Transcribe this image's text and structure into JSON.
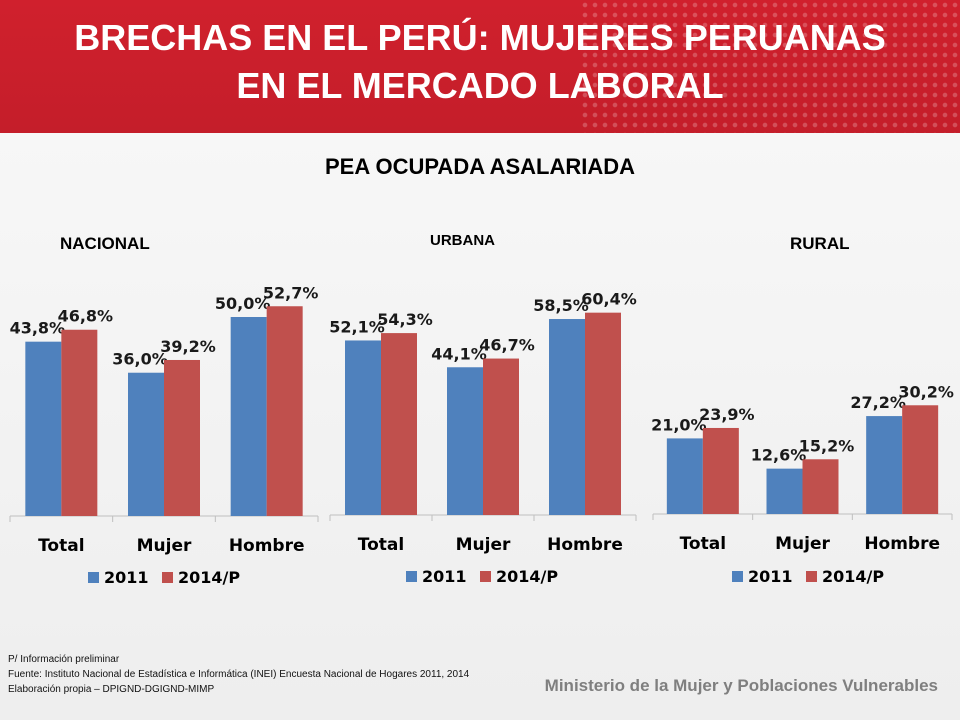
{
  "header": {
    "title_line1": "BRECHAS EN EL PERÚ: MUJERES PERUANAS",
    "title_line2": "EN EL MERCADO LABORAL"
  },
  "subtitle": "PEA OCUPADA ASALARIADA",
  "panels": [
    {
      "label": "NACIONAL"
    },
    {
      "label": "URBANA"
    },
    {
      "label": "RURAL"
    }
  ],
  "chart_data": [
    {
      "type": "bar",
      "title": "NACIONAL",
      "categories": [
        "Total",
        "Mujer",
        "Hombre"
      ],
      "series": [
        {
          "name": "2011",
          "values": [
            43.8,
            36.0,
            50.0
          ],
          "labels": [
            "43,8%",
            "36,0%",
            "50,0%"
          ],
          "color": "#4f81bd"
        },
        {
          "name": "2014/P",
          "values": [
            46.8,
            39.2,
            52.7
          ],
          "labels": [
            "46,8%",
            "39,2%",
            "52,7%"
          ],
          "color": "#c0504d"
        }
      ],
      "ylim": [
        0,
        60
      ],
      "grid": false,
      "legend": "bottom"
    },
    {
      "type": "bar",
      "title": "URBANA",
      "categories": [
        "Total",
        "Mujer",
        "Hombre"
      ],
      "series": [
        {
          "name": "2011",
          "values": [
            52.1,
            44.1,
            58.5
          ],
          "labels": [
            "52,1%",
            "44,1%",
            "58,5%"
          ],
          "color": "#4f81bd"
        },
        {
          "name": "2014/P",
          "values": [
            54.3,
            46.7,
            60.4
          ],
          "labels": [
            "54,3%",
            "46,7%",
            "60,4%"
          ],
          "color": "#c0504d"
        }
      ],
      "ylim": [
        0,
        70
      ],
      "grid": false,
      "legend": "bottom"
    },
    {
      "type": "bar",
      "title": "RURAL",
      "categories": [
        "Total",
        "Mujer",
        "Hombre"
      ],
      "series": [
        {
          "name": "2011",
          "values": [
            21.0,
            12.6,
            27.2
          ],
          "labels": [
            "21,0%",
            "12,6%",
            "27,2%"
          ],
          "color": "#4f81bd"
        },
        {
          "name": "2014/P",
          "values": [
            23.9,
            15.2,
            30.2
          ],
          "labels": [
            "23,9%",
            "15,2%",
            "30,2%"
          ],
          "color": "#c0504d"
        }
      ],
      "ylim": [
        0,
        35
      ],
      "grid": false,
      "legend": "bottom"
    }
  ],
  "footnote": {
    "line1": "P/ Información preliminar",
    "line2": "Fuente: Instituto Nacional de Estadística e Informática (INEI) Encuesta Nacional de Hogares 2011, 2014",
    "line3": "Elaboración propia – DPIGND-DGIGND-MIMP"
  },
  "ministry": "Ministerio de la Mujer y Poblaciones Vulnerables"
}
